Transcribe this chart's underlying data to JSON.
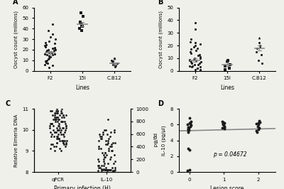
{
  "panelA": {
    "title": "A",
    "groups": [
      "F2",
      "15I",
      "C.B12"
    ],
    "xlabel": "Lines",
    "ylabel": "Oocyst count (millions)",
    "ylim": [
      0,
      60
    ],
    "yticks": [
      0,
      10,
      20,
      30,
      40,
      50,
      60
    ],
    "F2_data": [
      3,
      5,
      6,
      7,
      8,
      9,
      10,
      11,
      12,
      13,
      14,
      15,
      15,
      16,
      16,
      17,
      17,
      18,
      18,
      19,
      19,
      20,
      20,
      21,
      21,
      22,
      23,
      24,
      25,
      26,
      27,
      28,
      30,
      32,
      35,
      38,
      44
    ],
    "15I_data": [
      38,
      40,
      42,
      43,
      44,
      45,
      46,
      52,
      55
    ],
    "CB12_data": [
      4,
      5,
      6,
      6,
      7,
      7,
      8,
      9,
      10,
      12
    ],
    "CB12_triangle": [
      12
    ],
    "15I_mean": 44,
    "15I_sem_lo": 42,
    "15I_sem_hi": 46,
    "CB12_mean": 7,
    "CB12_sem_lo": 6.0,
    "CB12_sem_hi": 8.0,
    "F2_mean": 17,
    "F2_sem_lo": 15.5,
    "F2_sem_hi": 18.5
  },
  "panelB": {
    "title": "B",
    "groups": [
      "F2",
      "15I",
      "C.B12"
    ],
    "xlabel": "Lines",
    "ylabel": "Oocyst count (millions)",
    "ylim": [
      0,
      50
    ],
    "yticks": [
      0,
      10,
      20,
      30,
      40,
      50
    ],
    "F2_data": [
      0.5,
      1,
      1,
      2,
      2,
      3,
      3,
      4,
      4,
      5,
      5,
      6,
      6,
      7,
      7,
      8,
      8,
      9,
      9,
      10,
      10,
      11,
      12,
      13,
      14,
      15,
      16,
      17,
      18,
      19,
      20,
      21,
      22,
      23,
      25,
      33,
      38
    ],
    "15I_data": [
      1,
      2,
      4,
      5,
      7,
      8
    ],
    "CB12_data": [
      6,
      8,
      13,
      15,
      18,
      19,
      20,
      22
    ],
    "CB12_triangle": [
      26
    ],
    "F2_mean": 8.5,
    "F2_sem_lo": 7.0,
    "F2_sem_hi": 10.0,
    "15I_mean": 5,
    "15I_sem_lo": 3.5,
    "15I_sem_hi": 6.5,
    "CB12_mean": 18,
    "CB12_sem_lo": 16.0,
    "CB12_sem_hi": 20.0
  },
  "panelC": {
    "title": "C",
    "groups": [
      "qPCR",
      "IL-10"
    ],
    "xlabel": "Primary infection (H)",
    "ylabel_left": "Relative Eimeria DNA",
    "ylabel_right": "pg/Bd",
    "ylim_left": [
      8,
      11
    ],
    "ylim_right": [
      0,
      1000
    ],
    "yticks_left": [
      8,
      9,
      10,
      11
    ],
    "yticks_right": [
      0,
      200,
      400,
      600,
      800,
      1000
    ],
    "qPCR_data": [
      9.3,
      9.4,
      9.4,
      9.5,
      9.5,
      9.6,
      9.6,
      9.7,
      9.7,
      9.8,
      9.8,
      9.8,
      9.9,
      9.9,
      9.9,
      10.0,
      10.0,
      10.0,
      10.1,
      10.1,
      10.1,
      10.2,
      10.2,
      10.2,
      10.3,
      10.3,
      10.3,
      10.4,
      10.4,
      10.4,
      10.5,
      10.5,
      10.5,
      10.6,
      10.6,
      10.6,
      10.7,
      10.7,
      10.7,
      10.8,
      10.8,
      10.8,
      10.9,
      10.9,
      10.9,
      11.0,
      11.0,
      9.2,
      9.3,
      9.5,
      9.6,
      9.7,
      9.9,
      10.0,
      10.1,
      10.2,
      10.3,
      10.4,
      10.5,
      10.6,
      10.7,
      10.8,
      10.9,
      9.0,
      9.1,
      9.2,
      9.3,
      9.4,
      9.5,
      9.6,
      9.7,
      9.8,
      9.9,
      10.0,
      10.1,
      10.2,
      10.3,
      10.4,
      10.5,
      10.6,
      10.7,
      10.8,
      10.9,
      9.4,
      9.5,
      9.6,
      9.7,
      9.8,
      9.9,
      10.0,
      10.1,
      10.2,
      10.3,
      10.4,
      10.5,
      10.6,
      10.7,
      10.8,
      10.9,
      9.0,
      9.1,
      9.2,
      9.3,
      9.4,
      9.5
    ],
    "IL10_data": [
      8.05,
      8.06,
      8.07,
      8.07,
      8.08,
      8.08,
      8.09,
      8.09,
      8.1,
      8.1,
      8.1,
      8.1,
      8.1,
      8.1,
      8.1,
      8.1,
      8.1,
      8.1,
      8.15,
      8.15,
      8.2,
      8.2,
      8.2,
      8.3,
      8.3,
      8.3,
      8.4,
      8.4,
      8.5,
      8.5,
      8.6,
      8.6,
      8.7,
      8.7,
      8.8,
      8.8,
      8.9,
      8.9,
      9.0,
      9.0,
      9.1,
      9.1,
      9.2,
      9.2,
      9.3,
      9.3,
      9.4,
      9.4,
      9.5,
      9.5,
      9.6,
      9.6,
      9.7,
      9.7,
      9.8,
      9.8,
      9.9,
      9.9,
      10.0,
      10.0,
      10.5,
      8.1,
      8.1,
      8.2,
      8.3,
      8.5,
      8.7,
      8.9,
      9.1,
      9.3,
      9.5,
      9.7,
      9.9,
      8.1,
      8.2,
      8.4,
      8.6,
      8.8,
      9.0,
      9.2,
      9.4,
      9.6,
      9.8,
      10.0
    ]
  },
  "panelD": {
    "title": "D",
    "xlabel": "Lesion score",
    "ylabel": "IL-10 (pg/µl)",
    "ylim": [
      0,
      8
    ],
    "xlim": [
      -0.3,
      2.5
    ],
    "yticks": [
      0,
      2,
      4,
      6,
      8
    ],
    "xticks": [
      0,
      1,
      2
    ],
    "pvalue": "p = 0.04672",
    "x0_dots": [
      0,
      0,
      0,
      0,
      0,
      0,
      0,
      0,
      0,
      0,
      0,
      0,
      0,
      0,
      0,
      0,
      0,
      0
    ],
    "y0_dots": [
      0.2,
      0.3,
      2.8,
      3.0,
      5.0,
      5.2,
      5.3,
      5.4,
      5.5,
      5.6,
      5.7,
      5.8,
      5.9,
      6.0,
      6.1,
      6.2,
      6.4,
      6.8
    ],
    "x1_dots": [
      1,
      1,
      1,
      1,
      1,
      1,
      1,
      1,
      1,
      1
    ],
    "y1_dots": [
      5.5,
      5.6,
      5.7,
      5.8,
      5.9,
      6.0,
      6.1,
      6.2,
      6.3,
      6.4
    ],
    "x2_dots": [
      2,
      2,
      2,
      2,
      2,
      2,
      2,
      2,
      2,
      2
    ],
    "y2_dots": [
      5.0,
      5.2,
      5.4,
      5.6,
      5.8,
      6.0,
      6.1,
      6.2,
      6.3,
      6.5
    ],
    "line_x": [
      -0.3,
      2.5
    ],
    "line_y": [
      5.2,
      5.5
    ]
  },
  "bg_color": "#f0f0eb",
  "dot_color": "#1a1a1a",
  "gray": "#888888"
}
